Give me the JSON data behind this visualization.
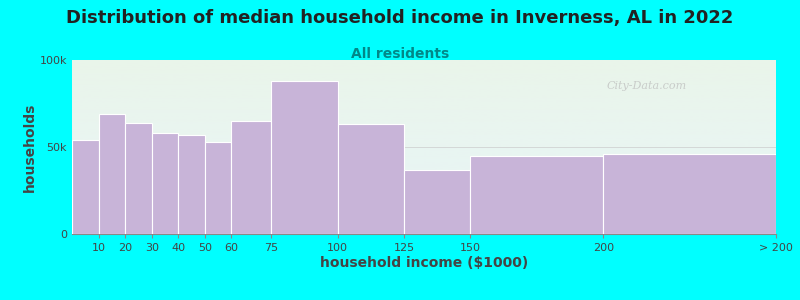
{
  "title": "Distribution of median household income in Inverness, AL in 2022",
  "subtitle": "All residents",
  "xlabel": "household income ($1000)",
  "ylabel": "households",
  "background_color": "#00FFFF",
  "bar_color": "#c8b4d8",
  "bar_edge_color": "#ffffff",
  "categories": [
    "10",
    "20",
    "30",
    "40",
    "50",
    "60",
    "75",
    "100",
    "125",
    "150",
    "200",
    "> 200"
  ],
  "values": [
    54000,
    69000,
    64000,
    58000,
    57000,
    53000,
    65000,
    88000,
    63000,
    37000,
    45000,
    46000
  ],
  "bar_lefts": [
    0,
    10,
    20,
    30,
    40,
    50,
    60,
    75,
    100,
    125,
    150,
    200
  ],
  "bar_widths": [
    10,
    10,
    10,
    10,
    10,
    10,
    15,
    25,
    25,
    25,
    50,
    65
  ],
  "xtick_positions": [
    10,
    20,
    30,
    40,
    50,
    60,
    75,
    100,
    125,
    150,
    200,
    265
  ],
  "ylim": [
    0,
    100000
  ],
  "ytick_labels": [
    "0",
    "50k",
    "100k"
  ],
  "title_fontsize": 13,
  "subtitle_fontsize": 10,
  "label_fontsize": 10,
  "tick_fontsize": 8,
  "watermark_text": "City-Data.com"
}
